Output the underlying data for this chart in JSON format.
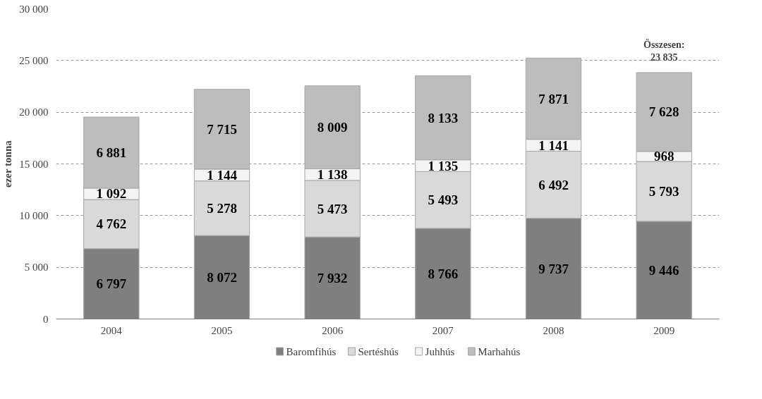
{
  "chart_data": {
    "type": "bar",
    "stacked": true,
    "ylabel": "ezer tonna",
    "categories": [
      "2004",
      "2005",
      "2006",
      "2007",
      "2008",
      "2009"
    ],
    "series": [
      {
        "name": "Baromfihús",
        "color": "#7f7f7f",
        "values": [
          6797,
          8072,
          7932,
          8766,
          9737,
          9446
        ],
        "value_labels": [
          "6 797",
          "8 072",
          "7 932",
          "8 766",
          "9 737",
          "9 446"
        ]
      },
      {
        "name": "Sertéshús",
        "color": "#d9d9d9",
        "values": [
          4762,
          5278,
          5473,
          5493,
          6492,
          5793
        ],
        "value_labels": [
          "4 762",
          "5 278",
          "5 473",
          "5 493",
          "6 492",
          "5 793"
        ]
      },
      {
        "name": "Juhhús",
        "color": "#f4f4f4",
        "values": [
          1092,
          1144,
          1138,
          1135,
          1141,
          968
        ],
        "value_labels": [
          "1 092",
          "1 144",
          "1 138",
          "1 135",
          "1 141",
          "968"
        ]
      },
      {
        "name": "Marhahús",
        "color": "#bdbdbd",
        "values": [
          6881,
          7715,
          8009,
          8133,
          7871,
          7628
        ],
        "value_labels": [
          "6 881",
          "7 715",
          "8 009",
          "8 133",
          "7 871",
          "7 628"
        ]
      }
    ],
    "annotations": [
      {
        "text": "Összesen:\n23 835",
        "x": "2009",
        "y": 23835
      }
    ],
    "ylim": [
      0,
      30000
    ],
    "yticks": [
      {
        "value": 0,
        "label": "0"
      },
      {
        "value": 5000,
        "label": "5 000"
      },
      {
        "value": 10000,
        "label": "10 000"
      },
      {
        "value": 15000,
        "label": "15 000"
      },
      {
        "value": 20000,
        "label": "20 000"
      },
      {
        "value": 25000,
        "label": "25 000"
      },
      {
        "value": 30000,
        "label": "30 000"
      }
    ],
    "grid": "y",
    "legend": "bottom"
  }
}
